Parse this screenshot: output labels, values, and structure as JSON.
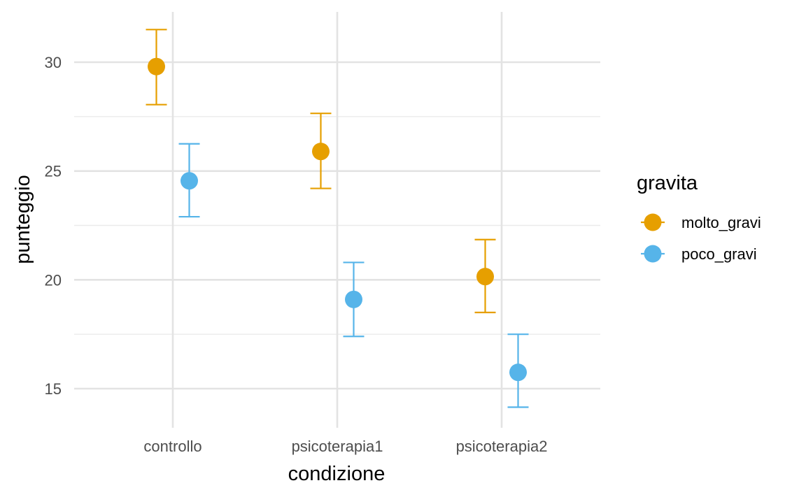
{
  "chart_data": {
    "type": "scatter",
    "subtype": "pointrange-errorbar",
    "title": "",
    "xlabel": "condizione",
    "ylabel": "punteggio",
    "categories": [
      "controllo",
      "psicoterapia1",
      "psicoterapia2"
    ],
    "y_ticks": [
      15,
      20,
      25,
      30
    ],
    "ylim": [
      13.6,
      32.3
    ],
    "grid": true,
    "legend": {
      "title": "gravita",
      "placement": "right"
    },
    "series": [
      {
        "name": "molto_gravi",
        "color": "#E69F00",
        "values": [
          29.8,
          25.9,
          20.15
        ],
        "lower": [
          28.05,
          24.2,
          18.5
        ],
        "upper": [
          31.5,
          27.65,
          21.85
        ]
      },
      {
        "name": "poco_gravi",
        "color": "#56B4E9",
        "values": [
          24.55,
          19.1,
          15.75
        ],
        "lower": [
          22.9,
          17.4,
          14.15
        ],
        "upper": [
          26.25,
          20.8,
          17.5
        ]
      }
    ]
  }
}
